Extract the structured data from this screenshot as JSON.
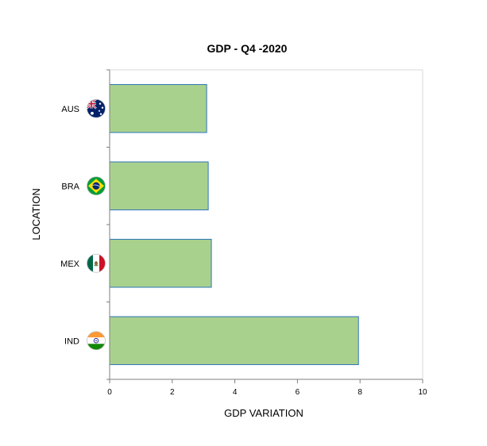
{
  "chart_data": {
    "type": "bar",
    "orientation": "horizontal",
    "title": "GDP - Q4 -2020",
    "xlabel": "GDP VARIATION",
    "ylabel": "LOCATION",
    "categories": [
      "AUS",
      "BRA",
      "MEX",
      "IND"
    ],
    "category_icons": [
      "australia-flag-icon",
      "brazil-flag-icon",
      "mexico-flag-icon",
      "india-flag-icon"
    ],
    "values": [
      3.1,
      3.15,
      3.25,
      7.95
    ],
    "xlim": [
      0,
      10
    ],
    "xticks": [
      0,
      2,
      4,
      6,
      8,
      10
    ],
    "grid": false,
    "legend": "none",
    "colors": {
      "bar_fill": "#a9d18e",
      "bar_stroke": "#2e75b6",
      "axis": "#7f7f7f",
      "frame": "#d9d9d9"
    }
  }
}
